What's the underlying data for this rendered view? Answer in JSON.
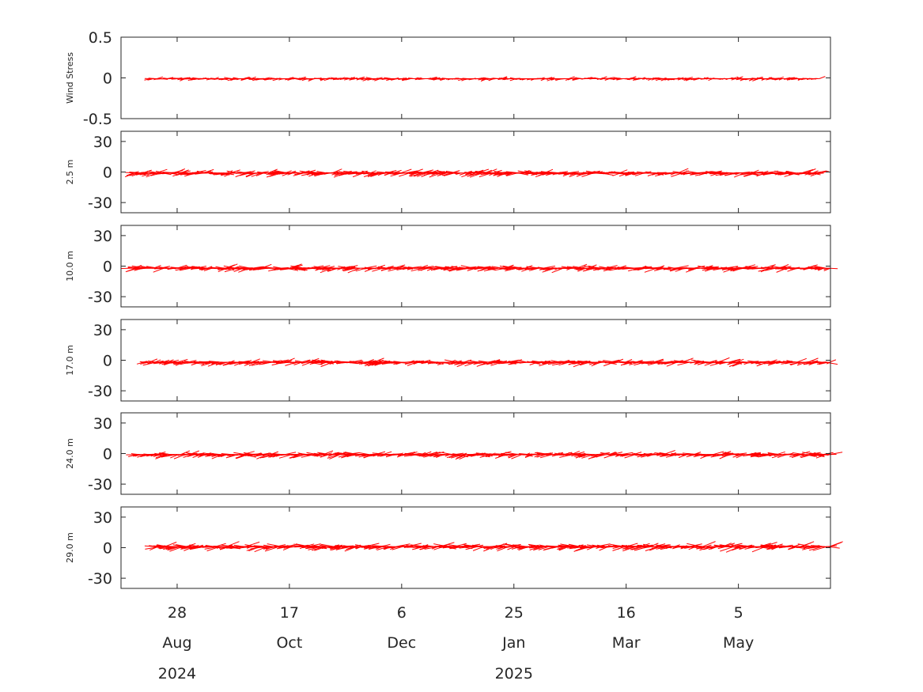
{
  "chart_data": {
    "type": "stick",
    "colors": {
      "sticks": "#ff0000",
      "axes": "#262626",
      "background": "#ffffff"
    },
    "x_axis": {
      "start": "2024-08-03",
      "end": "2025-06-15",
      "ticks": [
        {
          "date": "2024-08-28",
          "day": "28",
          "month": "Aug"
        },
        {
          "date": "2024-10-17",
          "day": "17",
          "month": "Oct"
        },
        {
          "date": "2024-12-06",
          "day": "6",
          "month": "Dec"
        },
        {
          "date": "2025-01-25",
          "day": "25",
          "month": "Jan"
        },
        {
          "date": "2025-03-16",
          "day": "16",
          "month": "Mar"
        },
        {
          "date": "2025-05-05",
          "day": "5",
          "month": "May"
        }
      ],
      "years": [
        {
          "date": "2024-08-28",
          "label": "2024"
        },
        {
          "date": "2025-01-25",
          "label": "2025"
        }
      ]
    },
    "panels": [
      {
        "ylabel": "Wind Stress",
        "ylim": [
          -0.5,
          0.5
        ],
        "yticks": [
          0.5,
          0,
          -0.5
        ],
        "ytick_labels": [
          "0.5",
          "0",
          "-0.5"
        ],
        "data_start": "2024-08-16",
        "data_end": "2025-06-10",
        "typical_amplitude": 0.04,
        "mean_offset": -0.01
      },
      {
        "ylabel": "2.5 m",
        "ylim": [
          -40,
          40
        ],
        "yticks": [
          30,
          0,
          -30
        ],
        "ytick_labels": [
          "30",
          "0",
          "-30"
        ],
        "data_start": "2024-08-08",
        "data_end": "2025-06-12",
        "typical_amplitude": 6,
        "mean_offset": -1
      },
      {
        "ylabel": "10.0 m",
        "ylim": [
          -40,
          40
        ],
        "yticks": [
          30,
          0,
          -30
        ],
        "ytick_labels": [
          "30",
          "0",
          "-30"
        ],
        "data_start": "2024-08-08",
        "data_end": "2025-06-15",
        "typical_amplitude": 6,
        "mean_offset": -2
      },
      {
        "ylabel": "17.0 m",
        "ylim": [
          -40,
          40
        ],
        "yticks": [
          30,
          0,
          -30
        ],
        "ytick_labels": [
          "30",
          "0",
          "-30"
        ],
        "data_start": "2024-08-12",
        "data_end": "2025-06-15",
        "typical_amplitude": 6,
        "mean_offset": -2
      },
      {
        "ylabel": "24.0 m",
        "ylim": [
          -40,
          40
        ],
        "yticks": [
          30,
          0,
          -30
        ],
        "ytick_labels": [
          "30",
          "0",
          "-30"
        ],
        "data_start": "2024-08-10",
        "data_end": "2025-06-15",
        "typical_amplitude": 6,
        "mean_offset": -1
      },
      {
        "ylabel": "29.0 m",
        "ylim": [
          -40,
          40
        ],
        "yticks": [
          30,
          0,
          -30
        ],
        "ytick_labels": [
          "30",
          "0",
          "-30"
        ],
        "data_start": "2024-08-18",
        "data_end": "2025-06-15",
        "typical_amplitude": 7,
        "mean_offset": 1
      }
    ]
  }
}
